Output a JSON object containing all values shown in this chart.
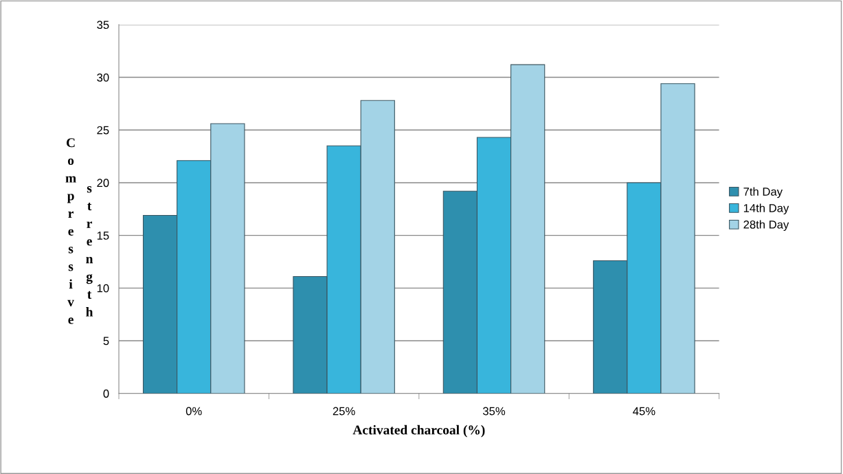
{
  "chart_data": {
    "type": "bar",
    "xlabel": "Activated charcoal (%)",
    "ylabel": "Compressive strength",
    "categories": [
      "0%",
      "25%",
      "35%",
      "45%"
    ],
    "series": [
      {
        "name": "7th Day",
        "color": "#2e8fae",
        "values": [
          16.9,
          11.1,
          19.2,
          12.6
        ]
      },
      {
        "name": "14th Day",
        "color": "#38b5dc",
        "values": [
          22.1,
          23.5,
          24.3,
          20.0
        ]
      },
      {
        "name": "28th Day",
        "color": "#a3d3e6",
        "values": [
          25.6,
          27.8,
          31.2,
          29.4
        ]
      }
    ],
    "ylim": [
      0,
      35
    ],
    "yticks": [
      0,
      5,
      10,
      15,
      20,
      25,
      30,
      35
    ],
    "grid": "y",
    "legend": "right"
  }
}
